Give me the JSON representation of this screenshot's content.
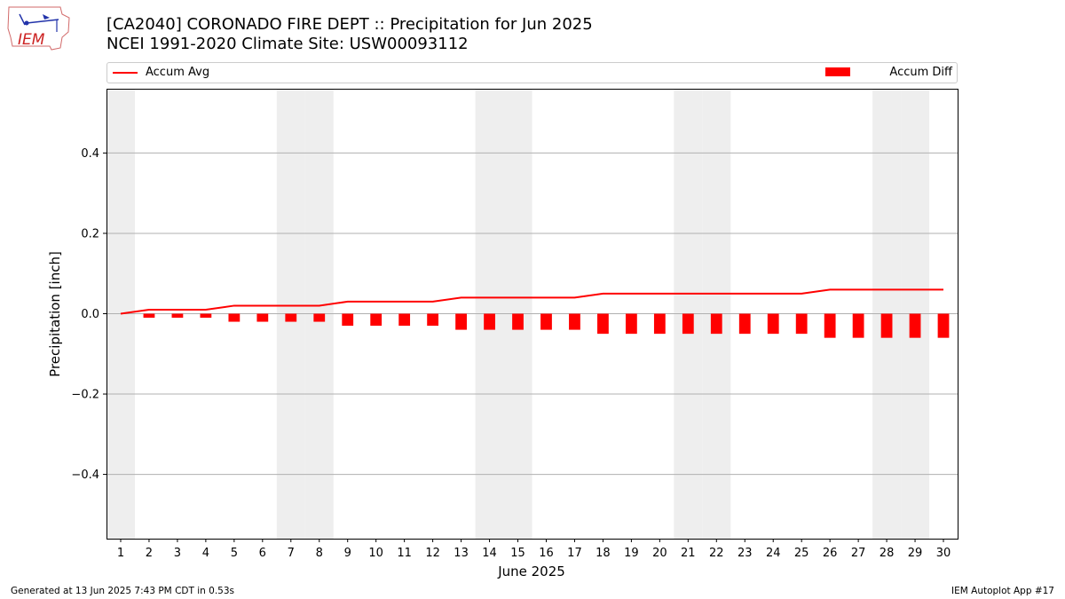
{
  "header": {
    "title_line1": "[CA2040] CORONADO FIRE DEPT :: Precipitation for Jun 2025",
    "title_line2": "NCEI 1991-2020 Climate Site: USW00093112",
    "logo_text": "IEM"
  },
  "legend": {
    "avg_label": "Accum Avg",
    "diff_label": "Accum Diff"
  },
  "footer": {
    "left": "Generated at 13 Jun 2025 7:43 PM CDT in 0.53s",
    "right": "IEM Autoplot App #17"
  },
  "colors": {
    "series": "#ff0000",
    "weekend_shade": "#eeeeee",
    "grid": "#b0b0b0"
  },
  "chart_data": {
    "type": "bar",
    "xlabel": "June 2025",
    "ylabel": "Precipitation [inch]",
    "ylim": [
      -0.56,
      0.56
    ],
    "yticks": [
      -0.4,
      -0.2,
      0.0,
      0.2,
      0.4
    ],
    "ytick_labels": [
      "−0.4",
      "−0.2",
      "0.0",
      "0.2",
      "0.4"
    ],
    "grid": "horizontal",
    "legend_placement": "top",
    "shaded_days": [
      1,
      7,
      8,
      14,
      15,
      21,
      22,
      28,
      29
    ],
    "categories": [
      "1",
      "2",
      "3",
      "4",
      "5",
      "6",
      "7",
      "8",
      "9",
      "10",
      "11",
      "12",
      "13",
      "14",
      "15",
      "16",
      "17",
      "18",
      "19",
      "20",
      "21",
      "22",
      "23",
      "24",
      "25",
      "26",
      "27",
      "28",
      "29",
      "30"
    ],
    "series": [
      {
        "name": "Accum Avg",
        "type": "line",
        "values": [
          0.0,
          0.01,
          0.01,
          0.01,
          0.02,
          0.02,
          0.02,
          0.02,
          0.03,
          0.03,
          0.03,
          0.03,
          0.04,
          0.04,
          0.04,
          0.04,
          0.04,
          0.05,
          0.05,
          0.05,
          0.05,
          0.05,
          0.05,
          0.05,
          0.05,
          0.06,
          0.06,
          0.06,
          0.06,
          0.06
        ]
      },
      {
        "name": "Accum Diff",
        "type": "bar",
        "values": [
          0.0,
          -0.01,
          -0.01,
          -0.01,
          -0.02,
          -0.02,
          -0.02,
          -0.02,
          -0.03,
          -0.03,
          -0.03,
          -0.03,
          -0.04,
          -0.04,
          -0.04,
          -0.04,
          -0.04,
          -0.05,
          -0.05,
          -0.05,
          -0.05,
          -0.05,
          -0.05,
          -0.05,
          -0.05,
          -0.06,
          -0.06,
          -0.06,
          -0.06,
          -0.06
        ]
      }
    ]
  }
}
